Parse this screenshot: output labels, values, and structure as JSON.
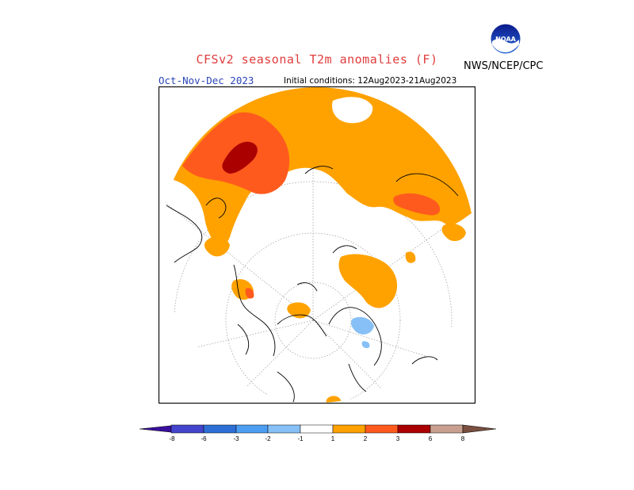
{
  "header": {
    "title": "CFSv2 seasonal T2m anomalies (F)",
    "agency": "NWS/NCEP/CPC",
    "season": "Oct-Nov-Dec 2023",
    "initial_conditions": "Initial conditions: 12Aug2023-21Aug2023",
    "logo_text": "NOAA"
  },
  "map": {
    "projection": "north-polar-stereographic",
    "variable": "2m temperature anomaly"
  },
  "legend": {
    "colors": {
      "neg8": "#3a10a0",
      "neg6": "#4444cc",
      "neg3": "#2e6fd6",
      "neg2": "#4c9ef0",
      "neg1": "#86c0f6",
      "neutral": "#ffffff",
      "pos1": "#ffa200",
      "pos2": "#ff5a1e",
      "pos3": "#ff2a00",
      "pos6": "#aa0000",
      "pos8": "#c9a090",
      "over8": "#7a4f40"
    },
    "labels": [
      "-8",
      "-6",
      "-3",
      "-2",
      "-1",
      "1",
      "2",
      "3",
      "6",
      "8"
    ]
  }
}
